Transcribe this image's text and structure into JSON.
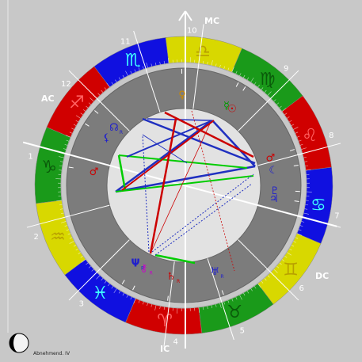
{
  "background": "#c8c8c8",
  "angles": {
    "asc": "AC",
    "mc": "MC",
    "desc": "DC",
    "ic": "IC"
  },
  "zodiac": [
    {
      "name": "capricorn",
      "glyph": "♑",
      "color": "#1a9a1a",
      "glyph_color": "#0a5a0a"
    },
    {
      "name": "aquarius",
      "glyph": "♒",
      "color": "#d8d800",
      "glyph_color": "#b8a000"
    },
    {
      "name": "pisces",
      "glyph": "♓",
      "color": "#1010e0",
      "glyph_color": "#40ffff"
    },
    {
      "name": "aries",
      "glyph": "♈",
      "color": "#d00000",
      "glyph_color": "#ff6060"
    },
    {
      "name": "taurus",
      "glyph": "♉",
      "color": "#1a9a1a",
      "glyph_color": "#0a5a0a"
    },
    {
      "name": "gemini",
      "glyph": "♊",
      "color": "#d8d800",
      "glyph_color": "#b8a000"
    },
    {
      "name": "cancer",
      "glyph": "♋",
      "color": "#1010e0",
      "glyph_color": "#40ffff"
    },
    {
      "name": "leo",
      "glyph": "♌",
      "color": "#d00000",
      "glyph_color": "#ff6060"
    },
    {
      "name": "virgo",
      "glyph": "♍",
      "color": "#1a9a1a",
      "glyph_color": "#0a5a0a"
    },
    {
      "name": "libra",
      "glyph": "♎",
      "color": "#d8d800",
      "glyph_color": "#b8a000"
    },
    {
      "name": "scorpio",
      "glyph": "♏",
      "color": "#1010e0",
      "glyph_color": "#40ffff"
    },
    {
      "name": "sagittarius",
      "glyph": "♐",
      "color": "#d00000",
      "glyph_color": "#ff6060"
    }
  ],
  "houses": [
    {
      "num": "1",
      "deg": 0
    },
    {
      "num": "2",
      "deg": 30
    },
    {
      "num": "3",
      "deg": 60
    },
    {
      "num": "4",
      "deg": 98
    },
    {
      "num": "5",
      "deg": 123
    },
    {
      "num": "6",
      "deg": 150
    },
    {
      "num": "7",
      "deg": 180
    },
    {
      "num": "8",
      "deg": 210
    },
    {
      "num": "9",
      "deg": 240
    },
    {
      "num": "10",
      "deg": 278
    },
    {
      "num": "11",
      "deg": 303
    },
    {
      "num": "12",
      "deg": 330
    }
  ],
  "planets": [
    {
      "name": "mars",
      "glyph": "♂",
      "deg": 6,
      "color": "#cc0000"
    },
    {
      "name": "neptune",
      "glyph": "Ψ",
      "deg": 73,
      "color": "#2020cc",
      "retro": true
    },
    {
      "name": "chiron",
      "glyph": "⚷",
      "deg": 79,
      "color": "#cc00cc",
      "retro": true
    },
    {
      "name": "saturn",
      "glyph": "♄",
      "deg": 97,
      "color": "#cc0000",
      "retro": true
    },
    {
      "name": "uranus",
      "glyph": "♅",
      "deg": 125,
      "color": "#2020cc",
      "retro": true
    },
    {
      "name": "jupiter",
      "glyph": "♃",
      "deg": 187,
      "color": "#2020cc"
    },
    {
      "name": "pluto",
      "glyph": "♇",
      "deg": 192,
      "color": "#2020cc"
    },
    {
      "name": "moon",
      "glyph": "☾",
      "deg": 205,
      "color": "#2020cc"
    },
    {
      "name": "mars2",
      "glyph": "♂",
      "deg": 213,
      "color": "#cc0000"
    },
    {
      "name": "sun",
      "glyph": "☉",
      "deg": 253,
      "color": "#cc0000"
    },
    {
      "name": "mercury",
      "glyph": "☿",
      "deg": 257,
      "color": "#009900"
    },
    {
      "name": "venus",
      "glyph": "♀",
      "deg": 286,
      "color": "#cc8800"
    },
    {
      "name": "node",
      "glyph": "☊",
      "deg": 335,
      "color": "#2020cc",
      "retro": true
    },
    {
      "name": "lilith",
      "glyph": "⚸",
      "deg": 343,
      "color": "#2020cc"
    }
  ],
  "moon_phase": {
    "label": "Abnehmend. IV"
  }
}
